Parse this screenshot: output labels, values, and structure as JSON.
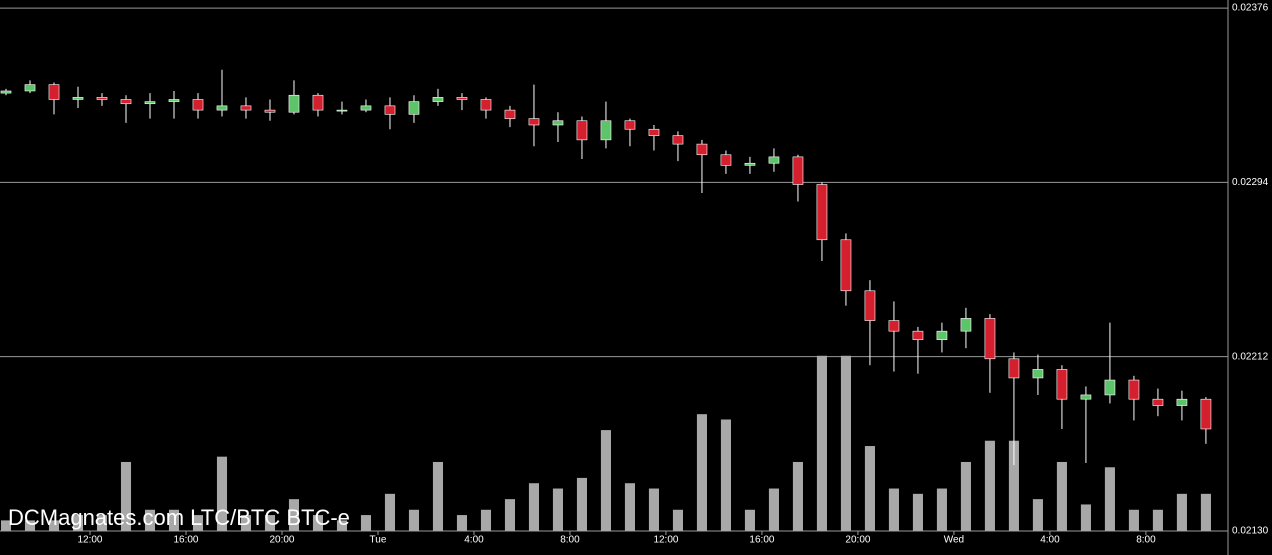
{
  "chart_data": {
    "type": "candlestick",
    "title": "DCMagnates.com LTC/BTC BTC-e",
    "x": [
      8.5,
      9.5,
      10.5,
      11.5,
      12.5,
      13.5,
      14.5,
      15.5,
      16.5,
      17.5,
      18.5,
      19.5,
      20.5,
      21.5,
      22.5,
      23.5,
      24.5,
      25.5,
      26.5,
      27.5,
      28.5,
      29.5,
      30.5,
      31.5,
      32.5,
      33.5,
      34.5,
      35.5,
      36.5,
      37.5,
      38.5,
      39.5,
      40.5,
      41.5,
      42.5,
      43.5,
      44.5,
      45.5,
      46.5,
      47.5,
      48.5,
      49.5,
      50.5,
      51.5,
      52.5,
      53.5,
      54.5,
      55.5,
      56.5,
      57.5,
      58.5
    ],
    "open": [
      0.02336,
      0.02337,
      0.0234,
      0.02333,
      0.02334,
      0.02333,
      0.02331,
      0.02332,
      0.02333,
      0.02328,
      0.0233,
      0.02328,
      0.02327,
      0.02335,
      0.02328,
      0.02328,
      0.0233,
      0.02326,
      0.02332,
      0.02334,
      0.02333,
      0.02328,
      0.02324,
      0.02321,
      0.02323,
      0.02314,
      0.02323,
      0.02319,
      0.02316,
      0.02312,
      0.02307,
      0.02302,
      0.02303,
      0.02306,
      0.02293,
      0.02267,
      0.02243,
      0.02229,
      0.02224,
      0.0222,
      0.02224,
      0.0223,
      0.02211,
      0.02202,
      0.02206,
      0.02192,
      0.02194,
      0.02201,
      0.02192,
      0.02189,
      0.02192
    ],
    "high": [
      0.02338,
      0.02342,
      0.02341,
      0.02339,
      0.02336,
      0.02335,
      0.02336,
      0.02337,
      0.02336,
      0.02347,
      0.02334,
      0.02333,
      0.02342,
      0.02336,
      0.02332,
      0.02333,
      0.02334,
      0.02335,
      0.02338,
      0.02336,
      0.02334,
      0.0233,
      0.0234,
      0.02327,
      0.02325,
      0.02332,
      0.02324,
      0.02321,
      0.02318,
      0.02314,
      0.02309,
      0.02306,
      0.0231,
      0.02307,
      0.02294,
      0.0227,
      0.02248,
      0.02238,
      0.02226,
      0.02228,
      0.02235,
      0.02232,
      0.02214,
      0.02213,
      0.02208,
      0.02198,
      0.02228,
      0.02203,
      0.02197,
      0.02196,
      0.02193
    ],
    "low": [
      0.02335,
      0.02336,
      0.02326,
      0.02329,
      0.0233,
      0.02322,
      0.02324,
      0.02324,
      0.02324,
      0.02325,
      0.02324,
      0.02323,
      0.02326,
      0.02325,
      0.02326,
      0.02327,
      0.02319,
      0.02322,
      0.0233,
      0.02328,
      0.02324,
      0.0232,
      0.02311,
      0.02313,
      0.02305,
      0.0231,
      0.02311,
      0.02309,
      0.02304,
      0.02289,
      0.02298,
      0.02298,
      0.02299,
      0.02285,
      0.02257,
      0.02236,
      0.02208,
      0.02205,
      0.02204,
      0.02214,
      0.02216,
      0.02195,
      0.02161,
      0.02194,
      0.02178,
      0.02162,
      0.0219,
      0.02182,
      0.02184,
      0.02182,
      0.02171
    ],
    "close": [
      0.02337,
      0.0234,
      0.02333,
      0.02334,
      0.02333,
      0.02331,
      0.02332,
      0.02333,
      0.02328,
      0.0233,
      0.02328,
      0.02327,
      0.02335,
      0.02328,
      0.02328,
      0.0233,
      0.02326,
      0.02332,
      0.02334,
      0.02333,
      0.02328,
      0.02324,
      0.02321,
      0.02323,
      0.02314,
      0.02323,
      0.02319,
      0.02316,
      0.02312,
      0.02307,
      0.02302,
      0.02303,
      0.02306,
      0.02293,
      0.02267,
      0.02243,
      0.02229,
      0.02224,
      0.0222,
      0.02224,
      0.0223,
      0.02211,
      0.02202,
      0.02206,
      0.02192,
      0.02194,
      0.02201,
      0.02192,
      0.02189,
      0.02192,
      0.02178
    ],
    "volume": [
      2,
      2,
      2,
      3,
      3,
      13,
      4,
      4,
      3,
      14,
      3,
      3,
      6,
      3,
      2,
      3,
      7,
      4,
      13,
      3,
      4,
      6,
      9,
      8,
      10,
      19,
      9,
      8,
      4,
      22,
      21,
      4,
      8,
      13,
      33,
      33,
      16,
      8,
      7,
      8,
      13,
      17,
      17,
      6,
      13,
      5,
      12,
      4,
      4,
      7,
      7
    ],
    "volume_lim": [
      0,
      100
    ],
    "up_color": "#5ec46a",
    "down_color": "#d4202e",
    "volume_color": "#a8a8a8",
    "xlim": [
      8.25,
      59.42
    ],
    "xticks": [
      {
        "value": 12,
        "label": "12:00"
      },
      {
        "value": 16,
        "label": "16:00"
      },
      {
        "value": 20,
        "label": "20:00"
      },
      {
        "value": 24,
        "label": "Tue"
      },
      {
        "value": 28,
        "label": "4:00"
      },
      {
        "value": 32,
        "label": "8:00"
      },
      {
        "value": 36,
        "label": "12:00"
      },
      {
        "value": 40,
        "label": "16:00"
      },
      {
        "value": 44,
        "label": "20:00"
      },
      {
        "value": 48,
        "label": "Wed"
      },
      {
        "value": 52,
        "label": "4:00"
      },
      {
        "value": 56,
        "label": "8:00"
      }
    ],
    "ylim": [
      0.021187,
      0.023798
    ],
    "yticks": [
      {
        "value": 0.0213,
        "label": "0.02130"
      },
      0.02212,
      0.02294,
      0.02376
    ],
    "grid": true
  }
}
